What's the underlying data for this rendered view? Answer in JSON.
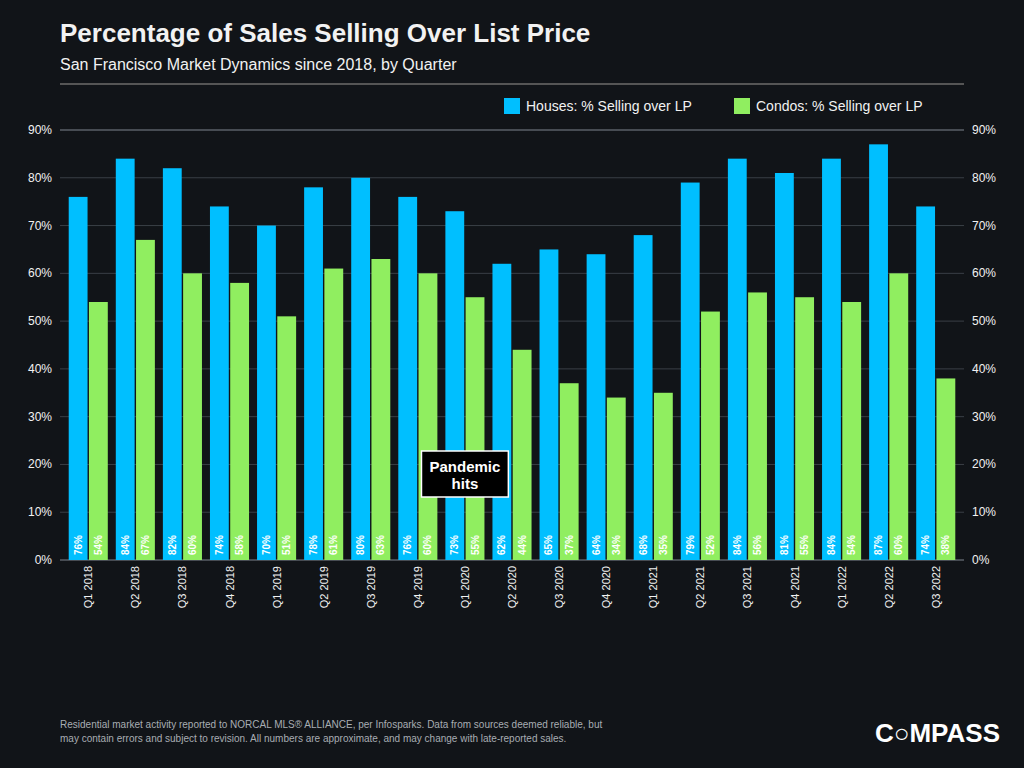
{
  "chart_data": {
    "type": "bar",
    "title": "Percentage of Sales Selling Over List Price",
    "subtitle": "San Francisco Market Dynamics since 2018, by Quarter",
    "categories": [
      "Q1 2018",
      "Q2 2018",
      "Q3 2018",
      "Q4 2018",
      "Q1 2019",
      "Q2 2019",
      "Q3 2019",
      "Q4 2019",
      "Q1 2020",
      "Q2 2020",
      "Q3 2020",
      "Q4 2020",
      "Q1 2021",
      "Q2 2021",
      "Q3 2021",
      "Q4 2021",
      "Q1 2022",
      "Q2 2022",
      "Q3 2022"
    ],
    "series": [
      {
        "name": "Houses: % Selling over LP",
        "color": "#00BFFF",
        "values": [
          76,
          84,
          82,
          74,
          70,
          78,
          80,
          76,
          73,
          62,
          65,
          64,
          68,
          79,
          84,
          81,
          84,
          87,
          74
        ],
        "value_labels": [
          "76%",
          "84%",
          "82%",
          "74%",
          "70%",
          "78%",
          "80%",
          "76%",
          "73%",
          "62%",
          "65%",
          "64%",
          "68%",
          "79%",
          "84%",
          "81%",
          "84%",
          "87%",
          "74%"
        ]
      },
      {
        "name": "Condos: % Selling over LP",
        "color": "#90EE60",
        "values": [
          54,
          67,
          60,
          58,
          51,
          61,
          63,
          60,
          55,
          44,
          37,
          34,
          35,
          52,
          56,
          55,
          54,
          60,
          38
        ],
        "value_labels": [
          "54%",
          "67%",
          "60%",
          "58%",
          "51%",
          "61%",
          "63%",
          "60%",
          "55%",
          "44%",
          "37%",
          "34%",
          "35%",
          "52%",
          "56%",
          "55%",
          "54%",
          "60%",
          "38%"
        ]
      }
    ],
    "ylim": [
      0,
      90
    ],
    "yticks": [
      {
        "value": 0,
        "label": "0%"
      },
      {
        "value": 10,
        "label": "10%"
      },
      {
        "value": 20,
        "label": "20%"
      },
      {
        "value": 30,
        "label": "30%"
      },
      {
        "value": 40,
        "label": "40%"
      },
      {
        "value": 50,
        "label": "50%"
      },
      {
        "value": 60,
        "label": "60%"
      },
      {
        "value": 70,
        "label": "70%"
      },
      {
        "value": 80,
        "label": "80%"
      },
      {
        "value": 90,
        "label": "90%"
      }
    ],
    "grid": true,
    "legend": "upper right",
    "data_labels": true,
    "annotations": [
      {
        "text": "Pandemic\nhits",
        "x": "Q1 2020",
        "y": 18
      }
    ],
    "footnote": "Residential market activity reported to NORCAL MLS® ALLIANCE, per Infosparks. Data from sources deemed reliable, but\nmay contain errors and subject to revision. All numbers are approximate, and may change with late-reported sales.",
    "logo": "C○MPASS"
  }
}
